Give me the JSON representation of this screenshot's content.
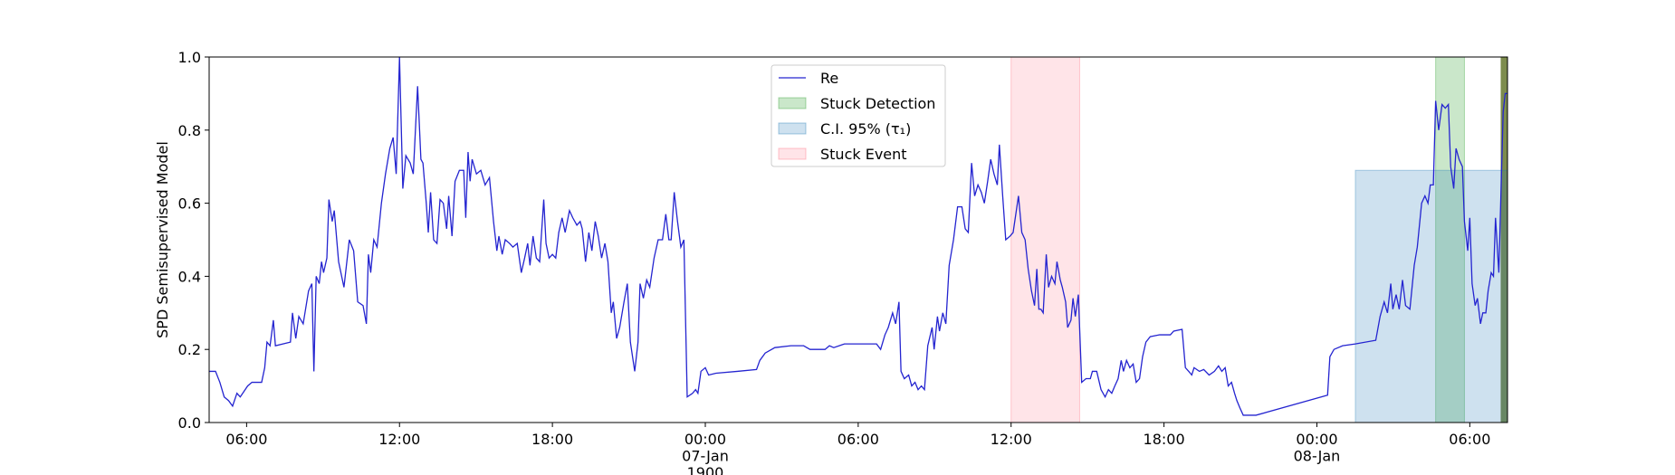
{
  "chart_data": {
    "type": "line",
    "ylabel": "SPD Semisupervised Model",
    "xlim": [
      4.53,
      55.48
    ],
    "ylim": [
      0,
      1
    ],
    "xticks": [
      {
        "value": 6,
        "label": "06:00"
      },
      {
        "value": 12,
        "label": "12:00"
      },
      {
        "value": 18,
        "label": "18:00"
      },
      {
        "value": 24,
        "label": "00:00\n07-Jan\n1900"
      },
      {
        "value": 30,
        "label": "06:00"
      },
      {
        "value": 36,
        "label": "12:00"
      },
      {
        "value": 42,
        "label": "18:00"
      },
      {
        "value": 48,
        "label": "00:00\n08-Jan"
      },
      {
        "value": 54,
        "label": "06:00"
      }
    ],
    "yticks": [
      {
        "value": 0,
        "label": "0.0"
      },
      0.2,
      0.4,
      0.6,
      0.8,
      {
        "value": 1,
        "label": "1.0"
      }
    ],
    "series": [
      {
        "name": "Re",
        "color": "#2424d0",
        "x": [
          4.53,
          4.78,
          4.95,
          5.12,
          5.29,
          5.45,
          5.62,
          5.75,
          6.04,
          6.21,
          6.59,
          6.71,
          6.8,
          6.92,
          7.05,
          7.13,
          7.72,
          7.8,
          7.93,
          8.05,
          8.22,
          8.43,
          8.56,
          8.64,
          8.73,
          8.85,
          8.94,
          9.02,
          9.15,
          9.23,
          9.36,
          9.44,
          9.61,
          9.82,
          10.03,
          10.2,
          10.36,
          10.57,
          10.7,
          10.78,
          10.87,
          10.99,
          11.12,
          11.29,
          11.45,
          11.62,
          11.75,
          11.87,
          12,
          12.13,
          12.25,
          12.42,
          12.54,
          12.71,
          12.84,
          12.92,
          13.05,
          13.13,
          13.22,
          13.34,
          13.47,
          13.59,
          13.72,
          13.85,
          13.93,
          14.06,
          14.18,
          14.35,
          14.52,
          14.6,
          14.69,
          14.77,
          14.85,
          15.02,
          15.19,
          15.36,
          15.53,
          15.69,
          15.82,
          15.9,
          16.03,
          16.15,
          16.32,
          16.45,
          16.62,
          16.78,
          16.91,
          17.03,
          17.12,
          17.24,
          17.37,
          17.5,
          17.66,
          17.75,
          17.87,
          18,
          18.13,
          18.25,
          18.38,
          18.5,
          18.67,
          18.8,
          18.96,
          19.09,
          19.17,
          19.3,
          19.43,
          19.55,
          19.68,
          19.8,
          19.93,
          20.06,
          20.18,
          20.31,
          20.39,
          20.52,
          20.64,
          20.81,
          20.94,
          21.06,
          21.23,
          21.36,
          21.44,
          21.57,
          21.7,
          21.82,
          21.99,
          22.15,
          22.32,
          22.45,
          22.57,
          22.66,
          22.78,
          22.91,
          23.04,
          23.16,
          23.29,
          23.5,
          23.62,
          23.71,
          23.83,
          24,
          24.13,
          24.42,
          25.26,
          26.01,
          26.14,
          26.35,
          26.73,
          27.36,
          27.86,
          28.11,
          28.7,
          28.87,
          29.04,
          29.46,
          30.72,
          30.88,
          31.05,
          31.18,
          31.35,
          31.47,
          31.6,
          31.68,
          31.81,
          31.98,
          32.1,
          32.23,
          32.35,
          32.48,
          32.6,
          32.73,
          32.9,
          32.98,
          33.11,
          33.19,
          33.32,
          33.44,
          33.57,
          33.74,
          33.9,
          34.07,
          34.2,
          34.32,
          34.45,
          34.57,
          34.7,
          34.83,
          34.95,
          35.08,
          35.2,
          35.33,
          35.46,
          35.54,
          35.67,
          35.79,
          35.96,
          36.08,
          36.29,
          36.42,
          36.55,
          36.67,
          36.8,
          36.92,
          37.01,
          37.09,
          37.17,
          37.26,
          37.38,
          37.47,
          37.59,
          37.72,
          37.8,
          37.93,
          38.01,
          38.14,
          38.22,
          38.35,
          38.43,
          38.52,
          38.64,
          38.77,
          38.94,
          39.11,
          39.19,
          39.36,
          39.53,
          39.69,
          39.82,
          39.95,
          40.07,
          40.2,
          40.32,
          40.41,
          40.53,
          40.66,
          40.79,
          40.91,
          41.04,
          41.16,
          41.29,
          41.46,
          41.83,
          42.25,
          42.38,
          42.71,
          42.84,
          42.97,
          43.09,
          43.18,
          43.39,
          43.56,
          43.77,
          43.98,
          44.14,
          44.27,
          44.4,
          44.52,
          44.65,
          44.77,
          44.86,
          44.98,
          45.11,
          45.61,
          48.42,
          48.51,
          48.67,
          49.01,
          49.51,
          50.31,
          50.48,
          50.64,
          50.77,
          50.9,
          50.98,
          51.11,
          51.23,
          51.36,
          51.48,
          51.65,
          51.82,
          51.94,
          52.11,
          52.24,
          52.36,
          52.45,
          52.57,
          52.66,
          52.78,
          52.91,
          53.04,
          53.16,
          53.25,
          53.37,
          53.46,
          53.58,
          53.71,
          53.79,
          53.92,
          54,
          54.09,
          54.21,
          54.3,
          54.42,
          54.51,
          54.63,
          54.72,
          54.84,
          54.93,
          55.01,
          55.14,
          55.22,
          55.31,
          55.39,
          55.48
        ],
        "values": [
          0.14,
          0.14,
          0.11,
          0.07,
          0.06,
          0.045,
          0.08,
          0.07,
          0.1,
          0.11,
          0.11,
          0.15,
          0.22,
          0.21,
          0.28,
          0.21,
          0.22,
          0.3,
          0.23,
          0.29,
          0.27,
          0.36,
          0.38,
          0.14,
          0.4,
          0.38,
          0.44,
          0.41,
          0.45,
          0.61,
          0.55,
          0.58,
          0.44,
          0.37,
          0.5,
          0.47,
          0.33,
          0.32,
          0.27,
          0.46,
          0.41,
          0.5,
          0.48,
          0.6,
          0.68,
          0.75,
          0.78,
          0.68,
          1.0,
          0.64,
          0.73,
          0.71,
          0.68,
          0.92,
          0.72,
          0.71,
          0.6,
          0.52,
          0.63,
          0.5,
          0.49,
          0.61,
          0.6,
          0.53,
          0.62,
          0.51,
          0.66,
          0.69,
          0.69,
          0.56,
          0.74,
          0.66,
          0.72,
          0.68,
          0.69,
          0.65,
          0.67,
          0.55,
          0.47,
          0.51,
          0.46,
          0.5,
          0.49,
          0.48,
          0.49,
          0.41,
          0.45,
          0.49,
          0.43,
          0.51,
          0.45,
          0.44,
          0.61,
          0.49,
          0.45,
          0.46,
          0.45,
          0.52,
          0.56,
          0.52,
          0.58,
          0.56,
          0.54,
          0.55,
          0.53,
          0.44,
          0.52,
          0.47,
          0.55,
          0.51,
          0.45,
          0.49,
          0.44,
          0.3,
          0.33,
          0.23,
          0.26,
          0.33,
          0.38,
          0.22,
          0.14,
          0.22,
          0.38,
          0.34,
          0.39,
          0.37,
          0.45,
          0.5,
          0.5,
          0.57,
          0.5,
          0.5,
          0.63,
          0.55,
          0.48,
          0.5,
          0.07,
          0.08,
          0.09,
          0.08,
          0.14,
          0.15,
          0.13,
          0.135,
          0.14,
          0.145,
          0.17,
          0.19,
          0.205,
          0.21,
          0.21,
          0.2,
          0.2,
          0.21,
          0.205,
          0.215,
          0.215,
          0.2,
          0.24,
          0.26,
          0.3,
          0.27,
          0.33,
          0.14,
          0.12,
          0.13,
          0.1,
          0.11,
          0.09,
          0.1,
          0.09,
          0.21,
          0.26,
          0.2,
          0.29,
          0.25,
          0.3,
          0.27,
          0.43,
          0.5,
          0.59,
          0.59,
          0.53,
          0.52,
          0.71,
          0.62,
          0.65,
          0.63,
          0.6,
          0.66,
          0.72,
          0.68,
          0.65,
          0.76,
          0.62,
          0.5,
          0.51,
          0.52,
          0.62,
          0.52,
          0.5,
          0.42,
          0.36,
          0.32,
          0.42,
          0.31,
          0.31,
          0.3,
          0.46,
          0.37,
          0.4,
          0.38,
          0.44,
          0.39,
          0.37,
          0.33,
          0.26,
          0.28,
          0.34,
          0.29,
          0.35,
          0.11,
          0.12,
          0.12,
          0.14,
          0.14,
          0.09,
          0.07,
          0.09,
          0.08,
          0.1,
          0.12,
          0.17,
          0.14,
          0.17,
          0.15,
          0.16,
          0.11,
          0.12,
          0.18,
          0.22,
          0.235,
          0.24,
          0.24,
          0.25,
          0.255,
          0.15,
          0.14,
          0.13,
          0.15,
          0.14,
          0.145,
          0.13,
          0.14,
          0.155,
          0.14,
          0.15,
          0.1,
          0.11,
          0.08,
          0.06,
          0.04,
          0.02,
          0.02,
          0.075,
          0.18,
          0.2,
          0.21,
          0.215,
          0.225,
          0.29,
          0.33,
          0.3,
          0.38,
          0.31,
          0.35,
          0.31,
          0.39,
          0.32,
          0.31,
          0.43,
          0.48,
          0.6,
          0.62,
          0.6,
          0.65,
          0.65,
          0.88,
          0.8,
          0.87,
          0.86,
          0.87,
          0.7,
          0.64,
          0.75,
          0.72,
          0.7,
          0.55,
          0.47,
          0.56,
          0.38,
          0.32,
          0.34,
          0.27,
          0.3,
          0.3,
          0.36,
          0.41,
          0.4,
          0.56,
          0.41,
          0.62,
          0.85,
          0.9,
          0.9
        ]
      }
    ],
    "spans": [
      {
        "name": "Stuck Detection",
        "color": "#2ca02c",
        "opacity": 0.25,
        "ranges": [
          {
            "start": 52.66,
            "end": 53.79,
            "color": "#2ca02c",
            "opacity": 0.25
          },
          {
            "start": 55.22,
            "end": 55.48,
            "color": "#6f7f3a",
            "opacity": 0.9
          }
        ]
      },
      {
        "name": "C.I. 95% (τ₁)",
        "color": "#1f77b4",
        "opacity": 0.22,
        "ranges": [
          {
            "start": 49.51,
            "end": 55.48,
            "ymax": 0.69
          }
        ]
      },
      {
        "name": "Stuck Event",
        "color": "#ff6b7f",
        "opacity": 0.18,
        "ranges": [
          {
            "start": 36.0,
            "end": 38.69
          }
        ]
      }
    ],
    "legend": "upper center"
  }
}
